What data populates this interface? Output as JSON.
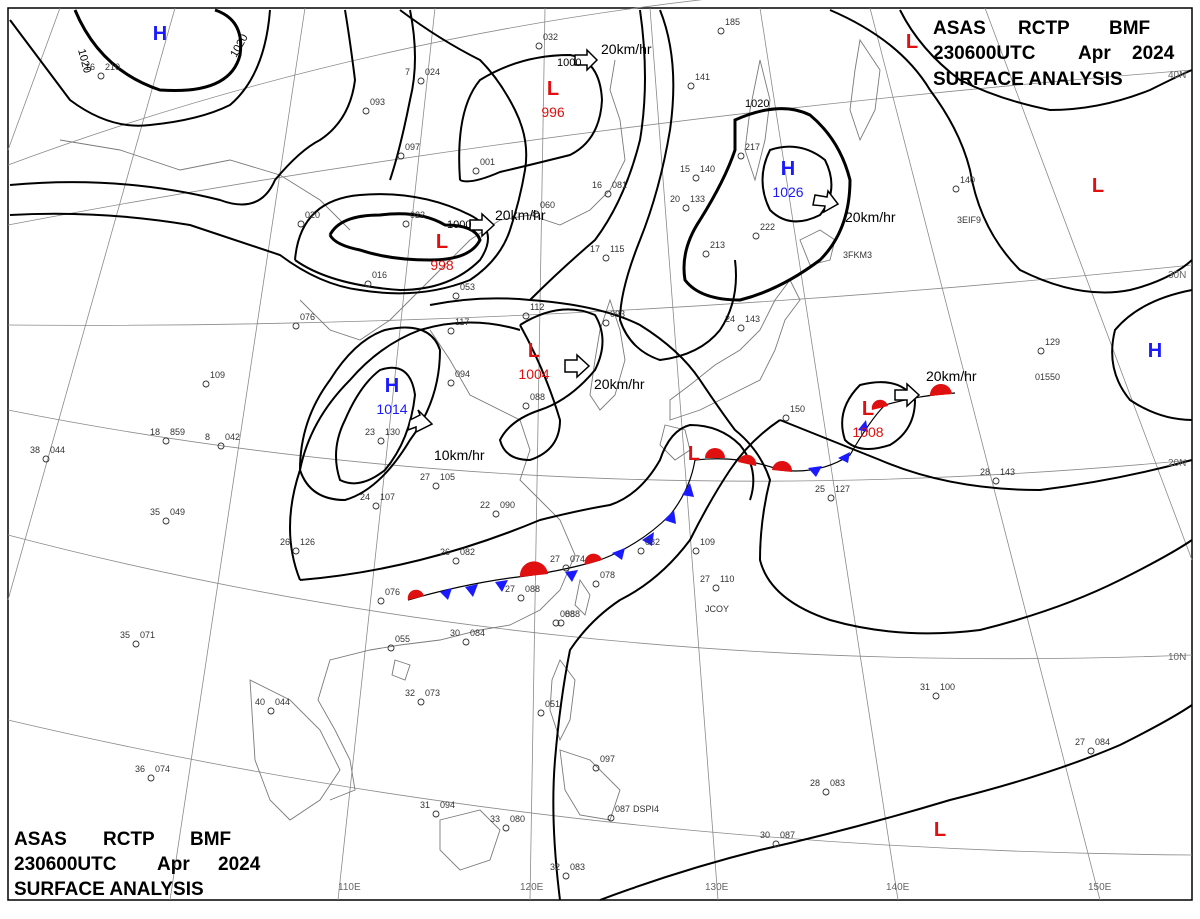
{
  "header_top": {
    "line1": [
      "ASAS",
      "RCTP",
      "BMF"
    ],
    "line2": [
      "230600UTC",
      "Apr",
      "2024"
    ],
    "line3": "SURFACE ANALYSIS"
  },
  "header_bottom": {
    "line1": [
      "ASAS",
      "RCTP",
      "BMF"
    ],
    "line2": [
      "230600UTC",
      "Apr",
      "2024"
    ],
    "line3": "SURFACE ANALYSIS"
  },
  "colors": {
    "high": "#1a1aff",
    "low": "#e01010",
    "warm_front": "#e01010",
    "cold_front": "#1a1aff",
    "isobar": "#000000",
    "grid": "#8a8a8a",
    "coast": "#7a7a7a"
  },
  "pressure_centers": [
    {
      "type": "H",
      "value": ""
    },
    {
      "type": "L",
      "value": "996"
    },
    {
      "type": "L",
      "value": "998"
    },
    {
      "type": "L",
      "value": "1004"
    },
    {
      "type": "H",
      "value": "1014"
    },
    {
      "type": "H",
      "value": "1026"
    },
    {
      "type": "L",
      "value": "1008"
    },
    {
      "type": "L",
      "value": ""
    },
    {
      "type": "L",
      "value": ""
    },
    {
      "type": "H",
      "value": ""
    },
    {
      "type": "L",
      "value": ""
    },
    {
      "type": "L",
      "value": ""
    }
  ],
  "isobar_labels": [
    "1020",
    "1020",
    "1000",
    "1000",
    "1020"
  ],
  "motion_labels": [
    "20km/hr",
    "20km/hr",
    "20km/hr",
    "20km/hr",
    "10km/hr",
    "20km/hr"
  ],
  "lon_labels": [
    "110E",
    "120E",
    "130E",
    "140E",
    "150E"
  ],
  "lat_labels": [
    "40N",
    "30N",
    "20N",
    "10N"
  ],
  "station_ids": [
    "3FKM3",
    "3EIF9",
    "JCOY",
    "DSPI4",
    "01550"
  ],
  "station_plots": [
    {
      "temp": "16",
      "press": "210"
    },
    {
      "temp": "",
      "press": "093"
    },
    {
      "temp": "7",
      "press": "024"
    },
    {
      "temp": "",
      "press": "097"
    },
    {
      "temp": "",
      "press": "001"
    },
    {
      "temp": "",
      "press": "020"
    },
    {
      "temp": "",
      "press": "022"
    },
    {
      "temp": "",
      "press": "060"
    },
    {
      "temp": "16",
      "press": "081"
    },
    {
      "temp": "15",
      "press": "140"
    },
    {
      "temp": "20",
      "press": "133"
    },
    {
      "temp": "",
      "press": "217"
    },
    {
      "temp": "",
      "press": "222"
    },
    {
      "temp": "",
      "press": "213"
    },
    {
      "temp": "17",
      "press": "115"
    },
    {
      "temp": "",
      "press": "076"
    },
    {
      "temp": "",
      "press": "053"
    },
    {
      "temp": "",
      "press": "016"
    },
    {
      "temp": "",
      "press": "117"
    },
    {
      "temp": "",
      "press": "112"
    },
    {
      "temp": "",
      "press": "093"
    },
    {
      "temp": "",
      "press": "109"
    },
    {
      "temp": "",
      "press": "094"
    },
    {
      "temp": "18",
      "press": "859"
    },
    {
      "temp": "8",
      "press": "042"
    },
    {
      "temp": "38",
      "press": "044"
    },
    {
      "temp": "23",
      "press": "130"
    },
    {
      "temp": "27",
      "press": "105"
    },
    {
      "temp": "",
      "press": "088"
    },
    {
      "temp": "24",
      "press": "107"
    },
    {
      "temp": "22",
      "press": "090"
    },
    {
      "temp": "35",
      "press": "049"
    },
    {
      "temp": "26",
      "press": "126"
    },
    {
      "temp": "26",
      "press": "082"
    },
    {
      "temp": "27",
      "press": "074"
    },
    {
      "temp": "",
      "press": "082"
    },
    {
      "temp": "",
      "press": "078"
    },
    {
      "temp": "",
      "press": "088"
    },
    {
      "temp": "",
      "press": "109"
    },
    {
      "temp": "27",
      "press": "110"
    },
    {
      "temp": "",
      "press": "076"
    },
    {
      "temp": "27",
      "press": "088"
    },
    {
      "temp": "",
      "press": "088"
    },
    {
      "temp": "35",
      "press": "071"
    },
    {
      "temp": "30",
      "press": "084"
    },
    {
      "temp": "",
      "press": "055"
    },
    {
      "temp": "32",
      "press": "073"
    },
    {
      "temp": "40",
      "press": "044"
    },
    {
      "temp": "",
      "press": "051"
    },
    {
      "temp": "36",
      "press": "074"
    },
    {
      "temp": "31",
      "press": "094"
    },
    {
      "temp": "33",
      "press": "080"
    },
    {
      "temp": "",
      "press": "087"
    },
    {
      "temp": "",
      "press": "097"
    },
    {
      "temp": "32",
      "press": "083"
    },
    {
      "temp": "",
      "press": "129"
    },
    {
      "temp": "",
      "press": "140"
    },
    {
      "temp": "",
      "press": "150"
    },
    {
      "temp": "25",
      "press": "127"
    },
    {
      "temp": "28",
      "press": "143"
    },
    {
      "temp": "31",
      "press": "100"
    },
    {
      "temp": "28",
      "press": "083"
    },
    {
      "temp": "30",
      "press": "087"
    },
    {
      "temp": "27",
      "press": "084"
    },
    {
      "temp": "",
      "press": "185"
    },
    {
      "temp": "",
      "press": "141"
    },
    {
      "temp": "24",
      "press": "143"
    },
    {
      "temp": "",
      "press": "032"
    }
  ]
}
